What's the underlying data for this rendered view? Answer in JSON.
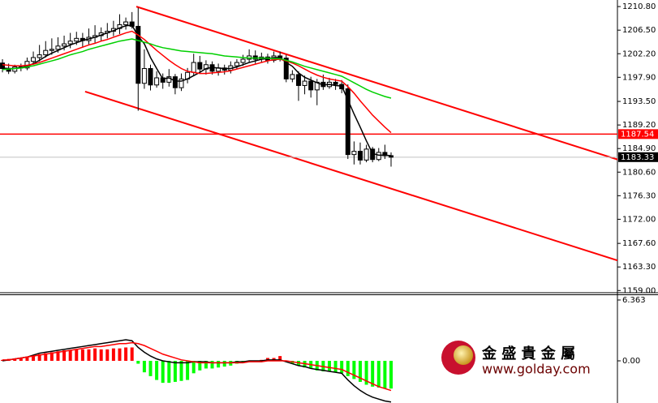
{
  "chart_data": [
    {
      "type": "candlestick",
      "xlim": [
        -0.4,
        99.7
      ],
      "ylim": [
        1158.6,
        1212.0
      ],
      "yticks": [
        {
          "value": 1210.8,
          "label": "1210.80"
        },
        {
          "value": 1206.5,
          "label": "1206.50"
        },
        {
          "value": 1202.2,
          "label": "1202.20"
        },
        {
          "value": 1197.9,
          "label": "1197.90"
        },
        {
          "value": 1193.5,
          "label": "1193.50"
        },
        {
          "value": 1189.2,
          "label": "1189.20"
        },
        {
          "value": 1184.9,
          "label": "1184.90"
        },
        {
          "value": 1180.6,
          "label": "1180.60"
        },
        {
          "value": 1176.3,
          "label": "1176.30"
        },
        {
          "value": 1172.0,
          "label": "1172.00"
        },
        {
          "value": 1167.6,
          "label": "1167.60"
        },
        {
          "value": 1163.3,
          "label": "1163.30"
        },
        {
          "value": 1159.0,
          "label": "1159.00"
        }
      ],
      "up_color": "#ffffff",
      "down_color": "#000000",
      "open": [
        1200.5,
        1199.5,
        1199.0,
        1199.8,
        1199.6,
        1200.8,
        1201.5,
        1202.0,
        1202.8,
        1203.0,
        1203.6,
        1204.0,
        1204.5,
        1205.0,
        1204.6,
        1205.2,
        1205.5,
        1206.0,
        1206.3,
        1206.8,
        1207.5,
        1208.0,
        1207.2,
        1196.8,
        1199.5,
        1196.5,
        1197.8,
        1197.0,
        1198.0,
        1196.0,
        1197.6,
        1198.8,
        1200.6,
        1199.4,
        1200.2,
        1199.0,
        1199.6,
        1199.2,
        1200.0,
        1200.6,
        1201.2,
        1201.8,
        1201.2,
        1201.6,
        1201.0,
        1201.8,
        1201.4,
        1197.6,
        1198.4,
        1196.4,
        1197.2,
        1195.6,
        1197.0,
        1196.2,
        1197.0,
        1196.6,
        1195.8,
        1183.8,
        1184.4,
        1182.8,
        1184.8,
        1182.9,
        1184.2,
        1183.6
      ],
      "high": [
        1201.2,
        1200.4,
        1200.2,
        1200.4,
        1201.5,
        1202.6,
        1203.8,
        1204.5,
        1205.0,
        1205.2,
        1205.5,
        1206.0,
        1206.2,
        1206.0,
        1206.8,
        1207.4,
        1207.0,
        1207.8,
        1208.2,
        1209.4,
        1208.8,
        1209.8,
        1210.6,
        1203.0,
        1200.2,
        1199.0,
        1198.6,
        1199.4,
        1198.5,
        1198.6,
        1199.6,
        1202.2,
        1201.8,
        1201.0,
        1200.8,
        1200.4,
        1200.2,
        1200.8,
        1201.2,
        1202.0,
        1203.0,
        1202.8,
        1202.4,
        1202.2,
        1202.6,
        1202.6,
        1202.0,
        1199.2,
        1199.0,
        1198.2,
        1198.0,
        1197.6,
        1198.4,
        1197.8,
        1197.6,
        1197.4,
        1196.6,
        1186.2,
        1186.0,
        1185.6,
        1185.2,
        1185.0,
        1185.6,
        1184.2
      ],
      "low": [
        1198.8,
        1198.5,
        1198.6,
        1199.0,
        1199.2,
        1200.2,
        1200.8,
        1201.5,
        1202.0,
        1202.4,
        1202.8,
        1203.2,
        1203.8,
        1203.5,
        1203.9,
        1204.2,
        1204.6,
        1205.0,
        1205.4,
        1205.8,
        1206.6,
        1206.8,
        1191.8,
        1195.8,
        1195.5,
        1196.0,
        1195.8,
        1196.2,
        1194.8,
        1195.4,
        1196.8,
        1198.2,
        1198.6,
        1198.4,
        1198.4,
        1198.2,
        1198.4,
        1198.6,
        1199.4,
        1200.0,
        1200.6,
        1200.4,
        1200.6,
        1200.4,
        1200.6,
        1200.8,
        1197.0,
        1197.0,
        1193.6,
        1194.8,
        1194.2,
        1192.8,
        1195.6,
        1195.8,
        1195.6,
        1195.0,
        1183.0,
        1182.0,
        1182.0,
        1182.4,
        1182.4,
        1182.6,
        1183.0,
        1181.6
      ],
      "close": [
        1199.5,
        1199.0,
        1199.8,
        1199.6,
        1200.8,
        1201.5,
        1202.0,
        1202.8,
        1203.0,
        1203.6,
        1204.0,
        1204.5,
        1205.0,
        1204.6,
        1205.2,
        1205.5,
        1206.0,
        1206.3,
        1206.8,
        1207.5,
        1208.0,
        1207.2,
        1196.8,
        1199.5,
        1196.5,
        1197.8,
        1197.0,
        1198.0,
        1196.0,
        1197.6,
        1198.8,
        1200.6,
        1199.4,
        1200.2,
        1199.0,
        1199.6,
        1199.2,
        1200.0,
        1200.6,
        1201.2,
        1201.8,
        1201.2,
        1201.6,
        1201.0,
        1201.8,
        1201.4,
        1197.6,
        1198.4,
        1196.4,
        1197.2,
        1195.6,
        1197.0,
        1196.2,
        1197.0,
        1196.6,
        1195.8,
        1183.8,
        1184.4,
        1182.8,
        1184.8,
        1182.9,
        1184.2,
        1183.6,
        1183.33
      ],
      "series": [
        {
          "color": "#000000",
          "values": [
            1199.6,
            1199.5,
            1199.5,
            1199.7,
            1199.9,
            1200.4,
            1201.0,
            1201.7,
            1202.3,
            1202.8,
            1203.3,
            1203.8,
            1204.2,
            1204.6,
            1204.9,
            1205.2,
            1205.6,
            1206.0,
            1206.4,
            1206.9,
            1207.3,
            1207.4,
            1205.4,
            1204.0,
            1201.5,
            1199.5,
            1197.6,
            1197.8,
            1197.2,
            1197.2,
            1197.6,
            1198.2,
            1198.8,
            1199.5,
            1199.7,
            1199.6,
            1199.5,
            1199.5,
            1199.8,
            1200.2,
            1200.6,
            1200.9,
            1201.2,
            1201.3,
            1201.5,
            1201.5,
            1200.6,
            1199.9,
            1198.7,
            1197.9,
            1197.4,
            1196.9,
            1196.5,
            1196.6,
            1196.4,
            1196.3,
            1193.8,
            1191.2,
            1188.8,
            1186.3,
            1184.0,
            1183.7,
            1183.7,
            1183.6
          ]
        },
        {
          "color": "#ff0000",
          "values": [
            1200.2,
            1200.1,
            1200.0,
            1200.0,
            1200.1,
            1200.3,
            1200.6,
            1201.0,
            1201.4,
            1201.8,
            1202.2,
            1202.6,
            1203.0,
            1203.4,
            1203.8,
            1204.1,
            1204.5,
            1204.8,
            1205.2,
            1205.6,
            1206.0,
            1206.3,
            1205.6,
            1204.8,
            1203.8,
            1202.8,
            1201.9,
            1201.0,
            1200.2,
            1199.5,
            1199.0,
            1198.8,
            1198.6,
            1198.6,
            1198.7,
            1198.8,
            1198.9,
            1199.1,
            1199.4,
            1199.7,
            1200.0,
            1200.3,
            1200.6,
            1200.9,
            1201.1,
            1201.2,
            1200.9,
            1200.5,
            1200.0,
            1199.4,
            1198.8,
            1198.3,
            1197.9,
            1197.6,
            1197.4,
            1197.2,
            1196.2,
            1195.0,
            1193.6,
            1192.3,
            1191.0,
            1189.9,
            1188.8,
            1187.8
          ]
        },
        {
          "color": "#00d000",
          "values": [
            1199.3,
            1199.4,
            1199.5,
            1199.6,
            1199.8,
            1200.0,
            1200.3,
            1200.6,
            1200.9,
            1201.2,
            1201.6,
            1202.0,
            1202.3,
            1202.6,
            1203.0,
            1203.3,
            1203.6,
            1203.9,
            1204.2,
            1204.5,
            1204.7,
            1204.9,
            1204.6,
            1204.3,
            1204.0,
            1203.6,
            1203.3,
            1203.1,
            1202.9,
            1202.7,
            1202.6,
            1202.5,
            1202.4,
            1202.3,
            1202.2,
            1202.0,
            1201.8,
            1201.7,
            1201.6,
            1201.5,
            1201.4,
            1201.4,
            1201.4,
            1201.4,
            1201.3,
            1201.3,
            1201.0,
            1200.7,
            1200.3,
            1199.9,
            1199.6,
            1199.3,
            1199.0,
            1198.7,
            1198.4,
            1198.1,
            1197.5,
            1196.9,
            1196.3,
            1195.7,
            1195.2,
            1194.8,
            1194.4,
            1194.1
          ]
        }
      ],
      "price_lines": [
        {
          "value": 1187.54,
          "color": "#ff0000"
        },
        {
          "value": 1183.33,
          "color": "#000000"
        }
      ],
      "trend_color": "#ff0000",
      "trendlines": [
        {
          "x": [
            21.7,
            99.7
          ],
          "y": [
            1210.8,
            1182.9
          ]
        },
        {
          "x": [
            13.4,
            99.7
          ],
          "y": [
            1195.3,
            1164.5
          ]
        }
      ]
    },
    {
      "type": "macd",
      "xlim": [
        -0.4,
        99.7
      ],
      "ylim": [
        -4.41,
        6.87
      ],
      "yticks": [
        6.363,
        {
          "value": 0,
          "label": "0.00"
        }
      ],
      "up_color": "#ff0000",
      "down_color": "#00ff00",
      "values": [
        0.1,
        0.2,
        0.2,
        0.3,
        0.4,
        0.5,
        0.7,
        0.8,
        0.9,
        1.0,
        1.1,
        1.1,
        1.2,
        1.2,
        1.2,
        1.3,
        1.2,
        1.2,
        1.3,
        1.3,
        1.4,
        1.4,
        -0.3,
        -1.2,
        -1.6,
        -2.0,
        -2.3,
        -2.3,
        -2.2,
        -2.1,
        -2.0,
        -1.3,
        -1.0,
        -0.8,
        -0.8,
        -0.7,
        -0.6,
        -0.5,
        -0.3,
        -0.2,
        -0.1,
        0.0,
        0.1,
        0.3,
        0.3,
        0.5,
        -0.1,
        -0.3,
        -0.5,
        -0.7,
        -0.8,
        -1.0,
        -1.1,
        -1.1,
        -1.2,
        -1.3,
        -1.6,
        -1.9,
        -2.2,
        -2.5,
        -2.7,
        -2.8,
        -2.9,
        -2.9
      ],
      "series": [
        {
          "color": "#000000",
          "values": [
            0.0,
            0.1,
            0.2,
            0.3,
            0.4,
            0.6,
            0.8,
            0.9,
            1.0,
            1.1,
            1.2,
            1.3,
            1.4,
            1.5,
            1.6,
            1.7,
            1.8,
            1.9,
            2.0,
            2.1,
            2.2,
            2.1,
            1.4,
            0.9,
            0.5,
            0.2,
            0.0,
            -0.1,
            -0.2,
            -0.2,
            -0.2,
            -0.1,
            -0.1,
            -0.1,
            -0.2,
            -0.2,
            -0.2,
            -0.2,
            -0.1,
            -0.1,
            0.0,
            0.0,
            0.0,
            0.1,
            0.1,
            0.1,
            -0.1,
            -0.3,
            -0.5,
            -0.6,
            -0.8,
            -0.9,
            -1.0,
            -1.1,
            -1.2,
            -1.3,
            -2.0,
            -2.6,
            -3.1,
            -3.5,
            -3.8,
            -4.0,
            -4.2,
            -4.3
          ]
        },
        {
          "color": "#ff0000",
          "values": [
            0.1,
            0.1,
            0.2,
            0.3,
            0.4,
            0.5,
            0.6,
            0.7,
            0.8,
            0.9,
            1.0,
            1.1,
            1.2,
            1.3,
            1.4,
            1.5,
            1.5,
            1.6,
            1.7,
            1.8,
            1.8,
            1.9,
            1.8,
            1.6,
            1.3,
            1.0,
            0.7,
            0.5,
            0.3,
            0.1,
            0.0,
            -0.1,
            -0.2,
            -0.2,
            -0.2,
            -0.2,
            -0.2,
            -0.2,
            -0.2,
            -0.2,
            -0.1,
            -0.1,
            -0.1,
            0.0,
            0.0,
            0.0,
            0.0,
            -0.1,
            -0.2,
            -0.3,
            -0.4,
            -0.5,
            -0.6,
            -0.7,
            -0.8,
            -0.9,
            -1.2,
            -1.5,
            -1.8,
            -2.1,
            -2.4,
            -2.7,
            -2.9,
            -3.1
          ]
        }
      ]
    }
  ],
  "logo": {
    "title": "金 盛 貴 金 屬",
    "url": "www.golday.com"
  }
}
